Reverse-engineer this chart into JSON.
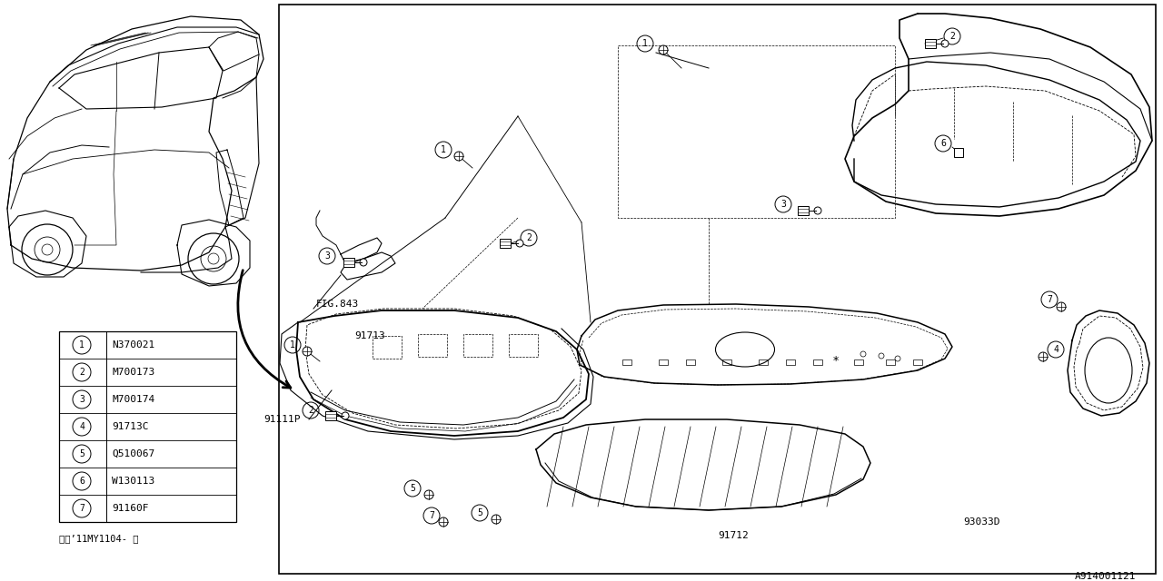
{
  "bg_color": "#ffffff",
  "line_color": "#000000",
  "text_color": "#000000",
  "fig_width": 12.8,
  "fig_height": 6.4,
  "part_number_label": "A914001121",
  "fig_ref": "FIG.843",
  "note_text": "※（’11MY1104- ）",
  "parts_legend": [
    {
      "num": 1,
      "code": "N370021"
    },
    {
      "num": 2,
      "code": "M700173"
    },
    {
      "num": 3,
      "code": "M700174"
    },
    {
      "num": 4,
      "code": "91713C"
    },
    {
      "num": 5,
      "code": "Q510067"
    },
    {
      "num": 6,
      "code": "W130113"
    },
    {
      "num": 7,
      "code": "91160F"
    }
  ]
}
